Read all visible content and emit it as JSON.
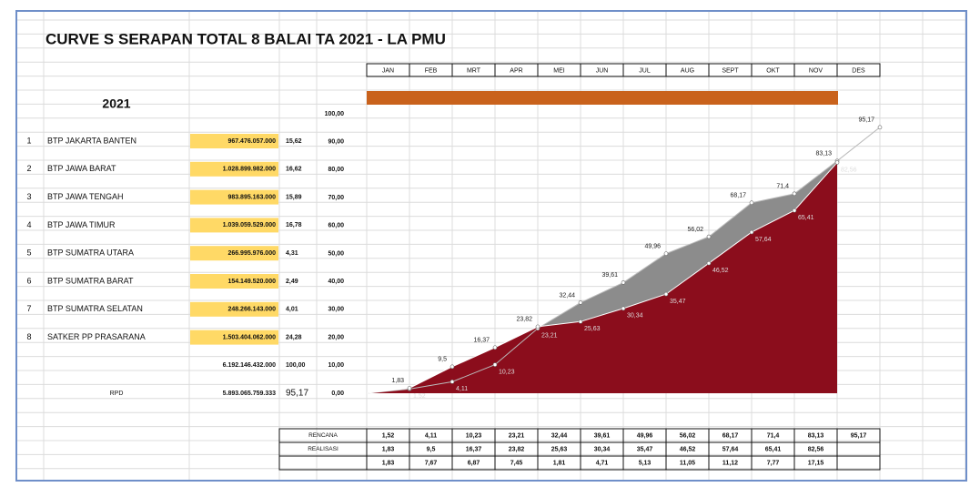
{
  "chart_data": {
    "type": "area",
    "title": "CURVE S SERAPAN TOTAL 8 BALAI TA 2021 - LA PMU",
    "categories": [
      "JAN",
      "FEB",
      "MRT",
      "APR",
      "MEI",
      "JUN",
      "JUL",
      "AUG",
      "SEPT",
      "OKT",
      "NOV",
      "DES"
    ],
    "series": [
      {
        "name": "RENCANA",
        "color": "#8c8c8c",
        "values": [
          1.52,
          4.11,
          10.23,
          23.21,
          32.44,
          39.61,
          49.96,
          56.02,
          68.17,
          71.4,
          83.13,
          95.17
        ],
        "value_labels": [
          "1,52",
          "4,11",
          "10,23",
          "23,21",
          "32,44",
          "39,61",
          "49,96",
          "56,02",
          "68,17",
          "71,4",
          "83,13",
          "95,17"
        ]
      },
      {
        "name": "REALISASI",
        "color": "#8b0d1c",
        "values": [
          1.83,
          9.5,
          16.37,
          23.82,
          25.63,
          30.34,
          35.47,
          46.52,
          57.64,
          65.41,
          82.56,
          null
        ],
        "value_labels": [
          "1,83",
          "9,5",
          "16,37",
          "23,82",
          "25,63",
          "30,34",
          "35,47",
          "46,52",
          "57,64",
          "65,41",
          "82,56",
          null
        ]
      }
    ],
    "ylim": [
      0,
      100
    ],
    "yticks": [
      {
        "value": 0,
        "label": "0,00"
      },
      {
        "value": 10,
        "label": "10,00"
      },
      {
        "value": 20,
        "label": "20,00"
      },
      {
        "value": 30,
        "label": "30,00"
      },
      {
        "value": 40,
        "label": "40,00"
      },
      {
        "value": 50,
        "label": "50,00"
      },
      {
        "value": 60,
        "label": "60,00"
      },
      {
        "value": 70,
        "label": "70,00"
      },
      {
        "value": 80,
        "label": "80,00"
      },
      {
        "value": 90,
        "label": "90,00"
      },
      {
        "value": 100,
        "label": "100,00"
      }
    ],
    "grid": false
  },
  "table": {
    "year": "2021",
    "rows": [
      [
        "1",
        "BTP JAKARTA BANTEN",
        "967.476.057.000",
        "15,62"
      ],
      [
        "2",
        "BTP JAWA BARAT",
        "1.028.899.982.000",
        "16,62"
      ],
      [
        "3",
        "BTP JAWA TENGAH",
        "983.895.163.000",
        "15,89"
      ],
      [
        "4",
        "BTP JAWA TIMUR",
        "1.039.059.529.000",
        "16,78"
      ],
      [
        "5",
        "BTP SUMATRA UTARA",
        "266.995.976.000",
        "4,31"
      ],
      [
        "6",
        "BTP SUMATRA BARAT",
        "154.149.520.000",
        "2,49"
      ],
      [
        "7",
        "BTP SUMATRA SELATAN",
        "248.266.143.000",
        "4,01"
      ],
      [
        "8",
        "SATKER PP PRASARANA",
        "1.503.404.062.000",
        "24,28"
      ]
    ],
    "total": [
      "6.192.146.432.000",
      "100,00"
    ],
    "rpd": [
      "RPD",
      "5.893.065.759.333",
      "95,17"
    ]
  },
  "summary": {
    "difference": [
      "1,83",
      "7,67",
      "6,87",
      "7,45",
      "1,81",
      "4,71",
      "5,13",
      "11,05",
      "11,12",
      "7,77",
      "17,15"
    ]
  }
}
